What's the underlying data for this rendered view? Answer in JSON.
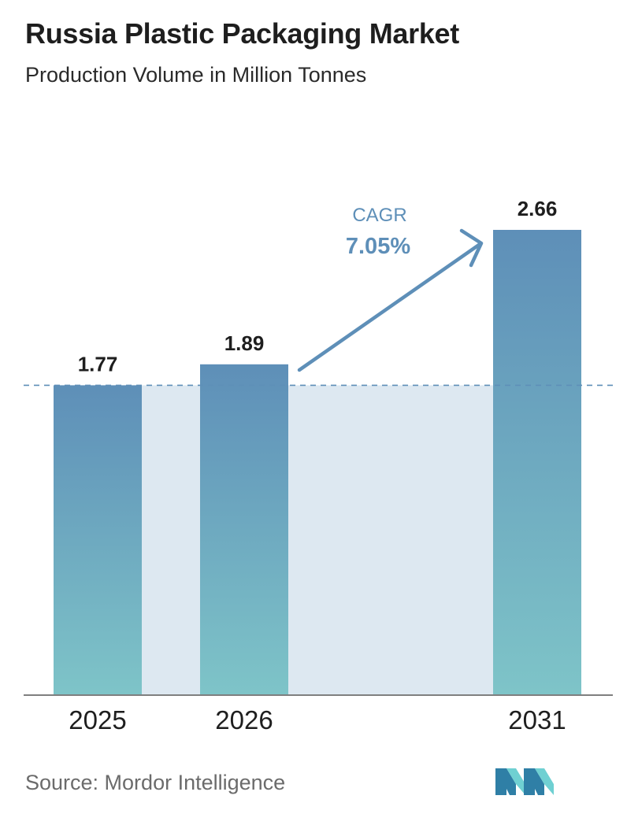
{
  "header": {
    "title": "Russia Plastic Packaging Market",
    "subtitle": "Production Volume in Million Tonnes"
  },
  "footer": {
    "source": "Source:  Mordor Intelligence",
    "logo_icon": "mordor-intelligence-logo-icon"
  },
  "cagr": {
    "label": "CAGR",
    "value": "7.05%"
  },
  "colors": {
    "bar_top": "#5e8fb8",
    "bar_bottom": "#7ec4c8",
    "band": "#dde8f1",
    "dashed_line": "#5e8fb8",
    "cagr_text": "#5e8fb8",
    "axis": "#555555",
    "logo_dark": "#2f7fa6",
    "logo_light": "#6fd0d2"
  },
  "chart_data": {
    "type": "bar",
    "title": "Russia Plastic Packaging Market",
    "subtitle": "Production Volume in Million Tonnes",
    "categories": [
      "2025",
      "2026",
      "2031"
    ],
    "values": [
      1.77,
      1.89,
      2.66
    ],
    "value_labels": [
      "1.77",
      "1.89",
      "2.66"
    ],
    "reference_line": 1.77,
    "ylim": [
      0,
      2.66
    ],
    "grid": false
  }
}
